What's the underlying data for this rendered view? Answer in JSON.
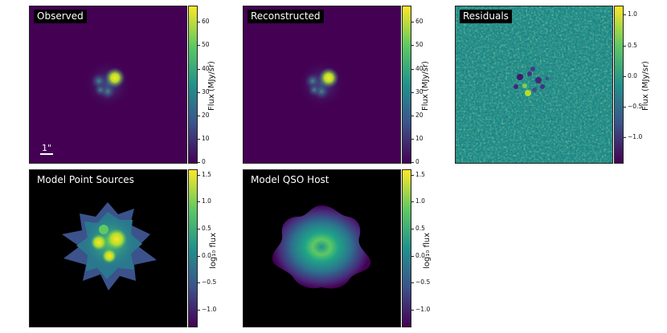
{
  "chart_data": [
    {
      "type": "heatmap",
      "title": "Observed",
      "colormap": "viridis",
      "colorbar_label": "Flux (MJy/sr)",
      "clim": [
        0,
        67
      ],
      "colorbar_ticks": [
        "0",
        "10",
        "20",
        "30",
        "40",
        "50",
        "60"
      ],
      "colorbar_tick_values": [
        0,
        10,
        20,
        30,
        40,
        50,
        60
      ],
      "scale_bar_label": "1\""
    },
    {
      "type": "heatmap",
      "title": "Reconstructed",
      "colormap": "viridis",
      "colorbar_label": "Flux (MJy/sr)",
      "clim": [
        0,
        67
      ],
      "colorbar_ticks": [
        "0",
        "10",
        "20",
        "30",
        "40",
        "50",
        "60"
      ],
      "colorbar_tick_values": [
        0,
        10,
        20,
        30,
        40,
        50,
        60
      ]
    },
    {
      "type": "heatmap",
      "title": "Residuals",
      "colormap": "viridis",
      "colorbar_label": "Flux (MJy/sr)",
      "clim": [
        -1.4,
        1.15
      ],
      "colorbar_ticks": [
        "1.0",
        "0.5",
        "0.0",
        "−0.5",
        "−1.0"
      ],
      "colorbar_tick_values": [
        1.0,
        0.5,
        0.0,
        -0.5,
        -1.0
      ]
    },
    {
      "type": "heatmap",
      "title": "Model Point Sources",
      "colormap": "viridis",
      "colorbar_label": "log₁₀ flux",
      "clim": [
        -1.3,
        1.6
      ],
      "colorbar_ticks": [
        "1.5",
        "1.0",
        "0.5",
        "0.0",
        "−0.5",
        "−1.0"
      ],
      "colorbar_tick_values": [
        1.5,
        1.0,
        0.5,
        0.0,
        -0.5,
        -1.0
      ]
    },
    {
      "type": "heatmap",
      "title": "Model QSO Host",
      "colormap": "viridis",
      "colorbar_label": "log₁₀ flux",
      "clim": [
        -1.3,
        1.6
      ],
      "colorbar_ticks": [
        "1.5",
        "1.0",
        "0.5",
        "0.0",
        "−0.5",
        "−1.0"
      ],
      "colorbar_tick_values": [
        1.5,
        1.0,
        0.5,
        0.0,
        -0.5,
        -1.0
      ]
    }
  ],
  "colors": {
    "viridis_0": "#440154",
    "viridis_1": "#3b528b",
    "viridis_2": "#21918c",
    "viridis_3": "#5ec962",
    "viridis_4": "#fde725",
    "background_dark": "#450457",
    "model_background": "#000000"
  }
}
